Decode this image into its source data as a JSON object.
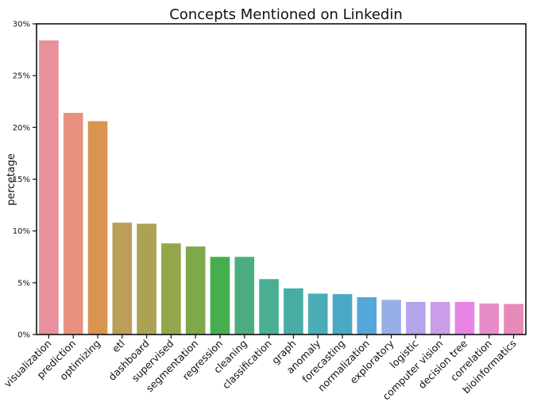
{
  "chart_data": {
    "type": "bar",
    "title": "Concepts Mentioned on Linkedin",
    "xlabel": "",
    "ylabel": "percetage",
    "ylim": [
      0,
      30
    ],
    "yticks": [
      0,
      5,
      10,
      15,
      20,
      25,
      30
    ],
    "ytick_labels": [
      "0%",
      "5%",
      "10%",
      "15%",
      "20%",
      "25%",
      "30%"
    ],
    "grid": false,
    "categories": [
      "visualization",
      "prediction",
      "optimizing",
      "etl",
      "dashboard",
      "supervised",
      "segmentation",
      "regression",
      "cleaning",
      "classification",
      "graph",
      "anomaly",
      "forecasting",
      "normalization",
      "exploratory",
      "logistic",
      "computer vision",
      "decision tree",
      "correlation",
      "bioinformatics"
    ],
    "values": [
      28.4,
      21.4,
      20.6,
      10.8,
      10.7,
      8.8,
      8.5,
      7.5,
      7.5,
      5.35,
      4.45,
      3.95,
      3.9,
      3.6,
      3.35,
      3.15,
      3.15,
      3.15,
      3.0,
      2.95
    ],
    "colors": [
      "#e8909b",
      "#e6917e",
      "#d89450",
      "#bc9e5a",
      "#aca253",
      "#93a64b",
      "#7ea84a",
      "#46ae4f",
      "#4cae80",
      "#4aae95",
      "#48aca5",
      "#4aadb6",
      "#4aa9c4",
      "#55a6da",
      "#98aee6",
      "#b3a4ec",
      "#ca9de8",
      "#e784e6",
      "#e88cc9",
      "#e88ab9"
    ]
  }
}
